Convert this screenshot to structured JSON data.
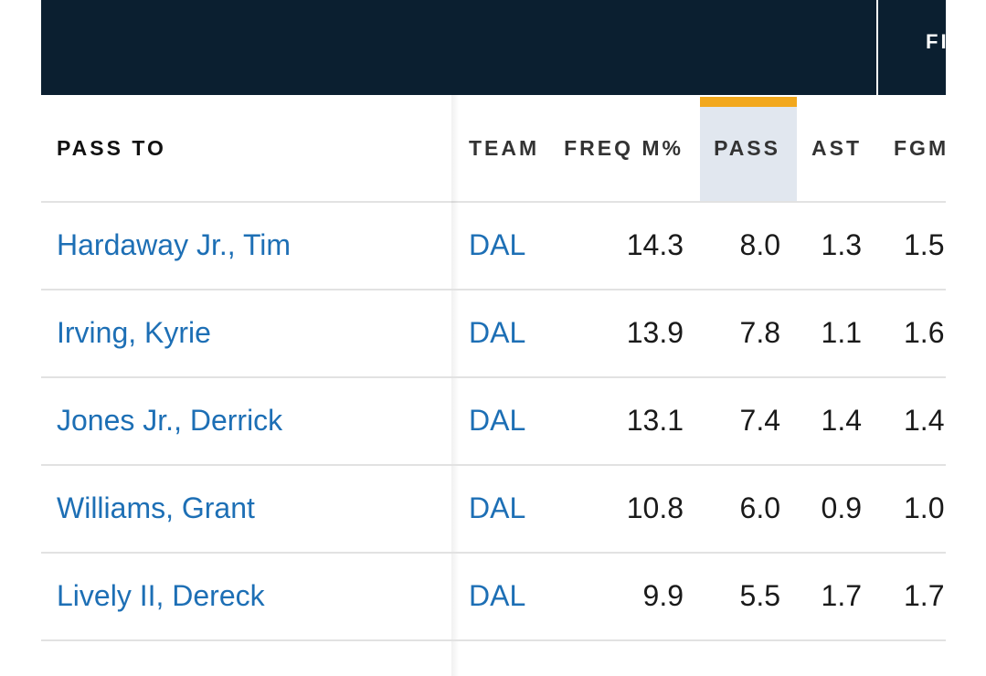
{
  "header": {
    "group_label": "FI"
  },
  "table": {
    "columns": [
      "PASS TO",
      "TEAM",
      "FREQ M%",
      "PASS",
      "AST",
      "FGM"
    ],
    "rows": [
      [
        "Hardaway Jr., Tim",
        "DAL",
        "14.3",
        "8.0",
        "1.3",
        "1.5"
      ],
      [
        "Irving, Kyrie",
        "DAL",
        "13.9",
        "7.8",
        "1.1",
        "1.6"
      ],
      [
        "Jones Jr., Derrick",
        "DAL",
        "13.1",
        "7.4",
        "1.4",
        "1.4"
      ],
      [
        "Williams, Grant",
        "DAL",
        "10.8",
        "6.0",
        "0.9",
        "1.0"
      ],
      [
        "Lively II, Dereck",
        "DAL",
        "9.9",
        "5.5",
        "1.7",
        "1.7"
      ]
    ]
  }
}
